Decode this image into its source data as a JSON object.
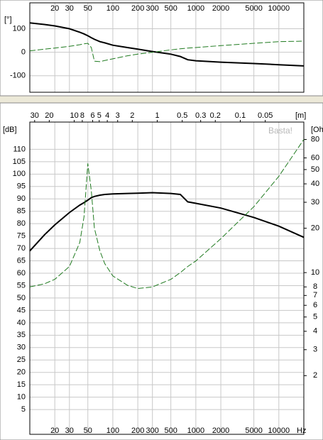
{
  "chart_data": [
    {
      "type": "line",
      "ylabel": "[°]",
      "x": [
        10,
        15,
        20,
        30,
        40,
        45,
        50,
        55,
        60,
        70,
        80,
        100,
        150,
        200,
        300,
        500,
        650,
        800,
        1000,
        2000,
        5000,
        10000,
        20000
      ],
      "xlim": [
        10,
        20000
      ],
      "xticks": [
        20,
        30,
        50,
        100,
        200,
        300,
        500,
        1000,
        2000,
        5000,
        10000
      ],
      "xscale": "log",
      "ylim": [
        -170,
        210
      ],
      "yticks": [
        -100,
        0,
        100
      ],
      "grid": true,
      "series": [
        {
          "color": "#000000",
          "dash": "none",
          "values": [
            125,
            118,
            112,
            100,
            85,
            78,
            70,
            62,
            55,
            45,
            40,
            30,
            20,
            13,
            3,
            -8,
            -18,
            -32,
            -36,
            -42,
            -48,
            -53,
            -58
          ]
        },
        {
          "color": "#1f7a1f",
          "dash": "dashed",
          "values": [
            6,
            13,
            18,
            25,
            32,
            36,
            38,
            20,
            -38,
            -40,
            -35,
            -28,
            -15,
            -8,
            0,
            10,
            15,
            18,
            20,
            28,
            38,
            45,
            47
          ]
        }
      ]
    },
    {
      "type": "line",
      "ylabel": "[dB]",
      "y2label": "[Ohm]",
      "xlabel": "Hz",
      "x2label": "[m]",
      "watermark": "Basta!",
      "x": [
        10,
        15,
        20,
        30,
        40,
        45,
        50,
        55,
        60,
        70,
        80,
        100,
        150,
        200,
        300,
        500,
        650,
        800,
        1000,
        2000,
        5000,
        10000,
        20000
      ],
      "xlim": [
        10,
        20000
      ],
      "xticks": [
        20,
        30,
        50,
        100,
        200,
        300,
        500,
        1000,
        2000,
        5000,
        10000
      ],
      "xscale": "log",
      "x2ticks": [
        30,
        20,
        10,
        8,
        6,
        5,
        4,
        3,
        2,
        1,
        0.5,
        0.3,
        0.2,
        0.1,
        0.05
      ],
      "ylim": [
        -5,
        121
      ],
      "yticks": [
        5,
        10,
        15,
        20,
        25,
        30,
        35,
        40,
        45,
        50,
        55,
        60,
        65,
        70,
        75,
        80,
        85,
        90,
        95,
        100,
        105,
        110
      ],
      "y2lim": [
        0.8,
        105
      ],
      "y2ticks": [
        2,
        3,
        4,
        5,
        6,
        7,
        8,
        10,
        20,
        30,
        40,
        50,
        60,
        80
      ],
      "y2scale": "log",
      "grid": true,
      "series": [
        {
          "color": "#000000",
          "dash": "none",
          "values": [
            69,
            75.5,
            79.5,
            84.5,
            87.5,
            88.5,
            89.5,
            90.5,
            91,
            91.5,
            91.8,
            92,
            92.2,
            92.3,
            92.5,
            92.2,
            91.8,
            88.8,
            88.2,
            86.3,
            82.5,
            79,
            74.5
          ]
        },
        {
          "color": "#1f7a1f",
          "dash": "dashed",
          "axis": "y2",
          "values": [
            8.0,
            8.4,
            9,
            11,
            16,
            24,
            55,
            36,
            20,
            14,
            11.5,
            9.5,
            8.2,
            7.8,
            8,
            9,
            10,
            11,
            12,
            17,
            28,
            45,
            80
          ]
        }
      ]
    }
  ]
}
